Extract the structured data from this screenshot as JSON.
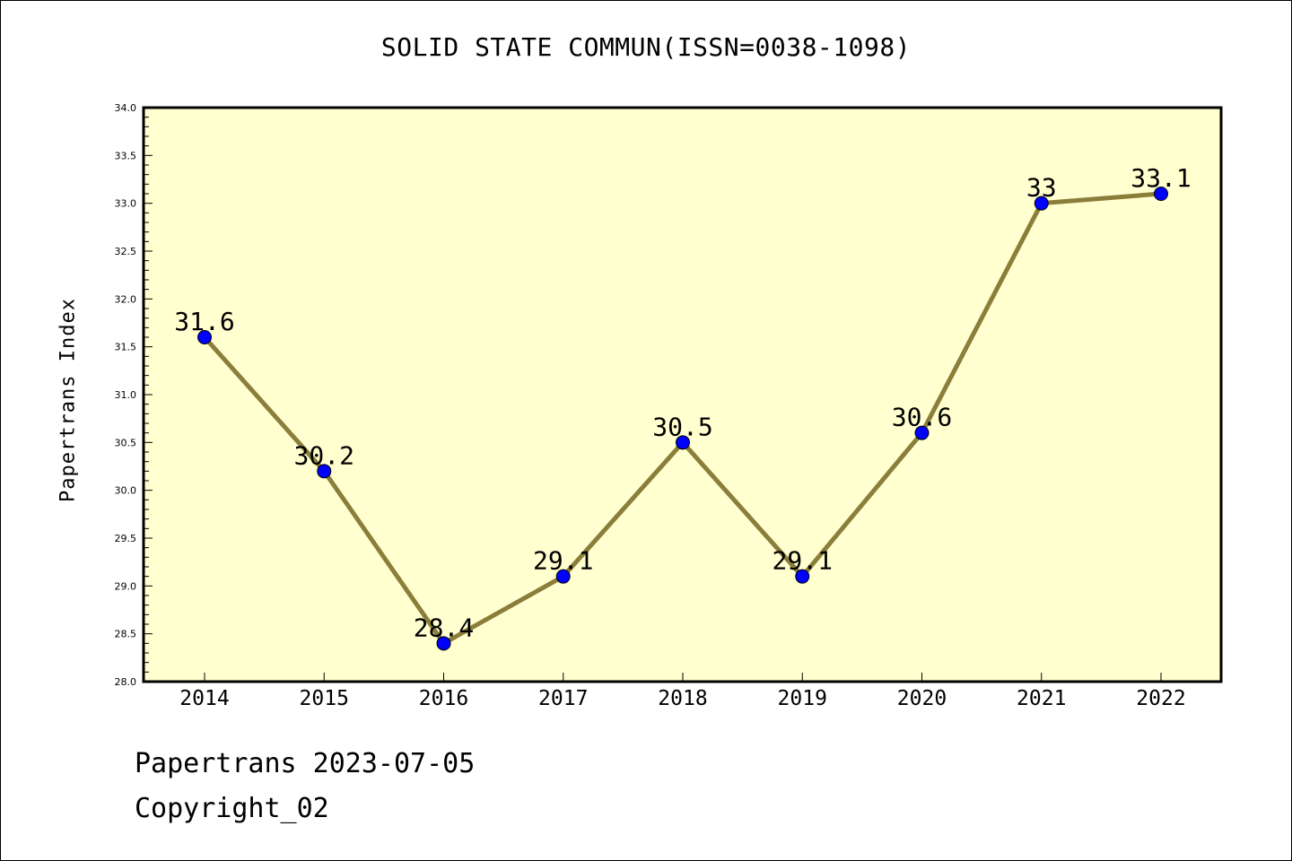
{
  "footer": {
    "line1": "Papertrans 2023-07-05",
    "line2": "Copyright_02"
  },
  "chart_data": {
    "type": "line",
    "title": "SOLID STATE COMMUN(ISSN=0038-1098)",
    "xlabel": "",
    "ylabel": "Papertrans Index",
    "categories": [
      "2014",
      "2015",
      "2016",
      "2017",
      "2018",
      "2019",
      "2020",
      "2021",
      "2022"
    ],
    "series": [
      {
        "values": [
          31.6,
          30.2,
          28.4,
          29.1,
          30.5,
          29.1,
          30.6,
          33,
          33.1
        ],
        "labels": [
          "31.6",
          "30.2",
          "28.4",
          "29.1",
          "30.5",
          "29.1",
          "30.6",
          "33",
          "33.1"
        ]
      }
    ],
    "ylim": [
      28.0,
      34.0
    ],
    "yticks": [
      "28.0",
      "28.5",
      "29.0",
      "29.5",
      "30.0",
      "30.5",
      "31.0",
      "31.5",
      "32.0",
      "32.5",
      "33.0",
      "33.5",
      "34.0"
    ],
    "grid": false,
    "colors": {
      "plot_background": "#ffffd0",
      "line": "#8b7d3a",
      "marker": "#0000ff"
    }
  }
}
